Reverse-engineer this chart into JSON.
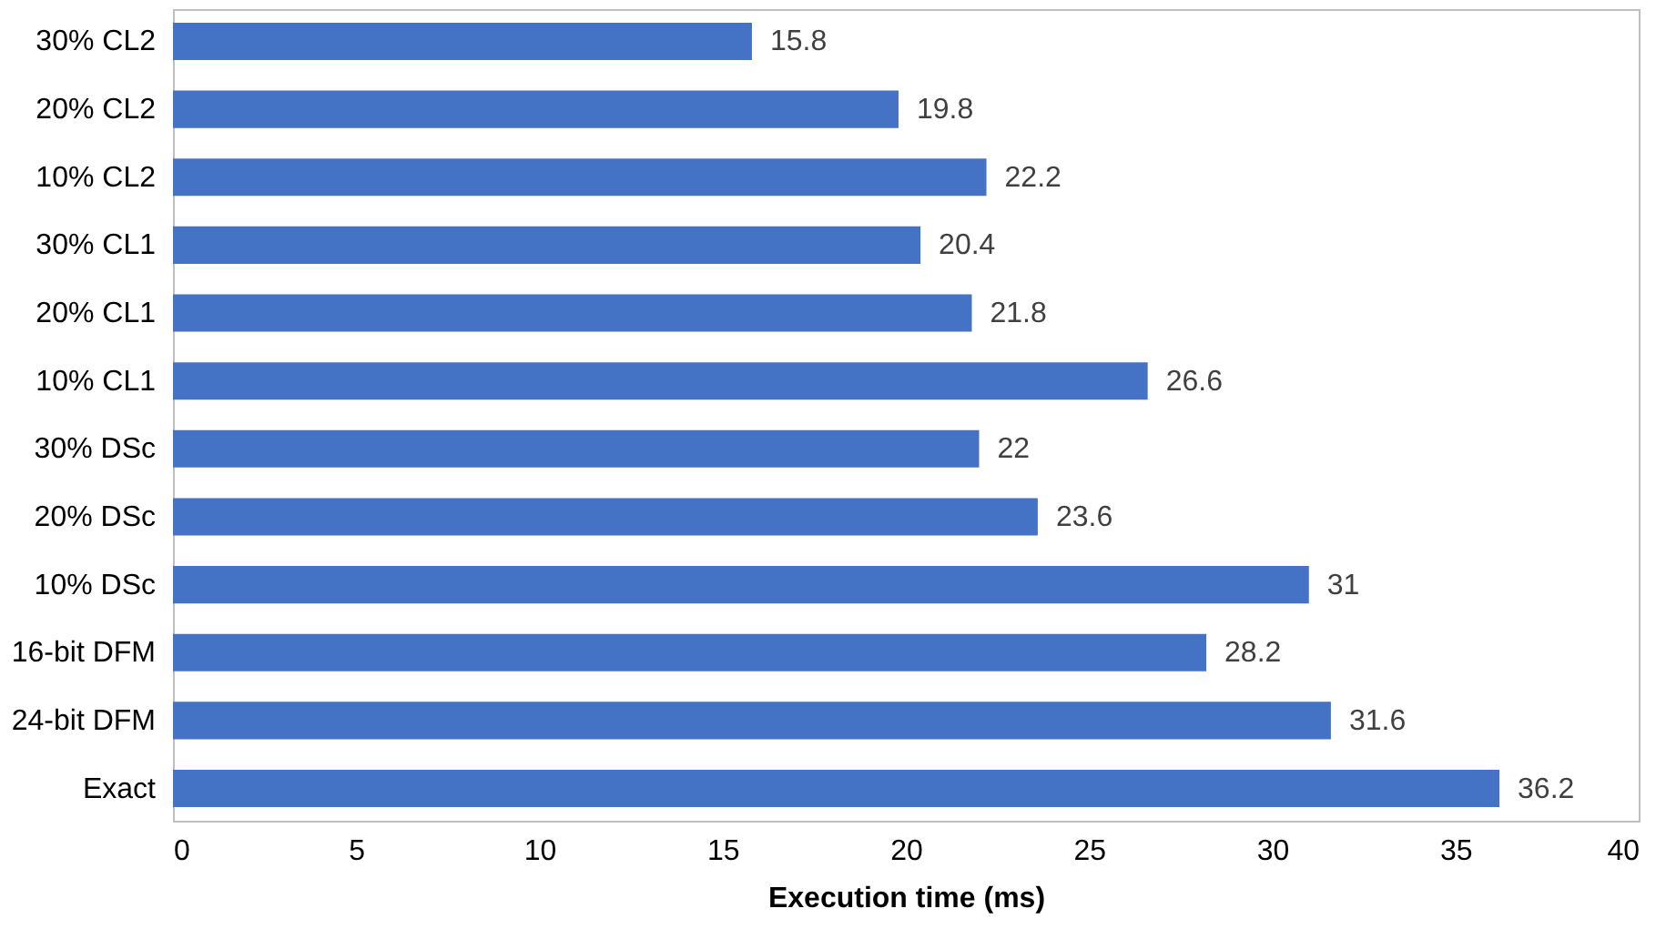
{
  "chart_data": {
    "type": "bar",
    "orientation": "horizontal",
    "xlabel": "Execution time (ms)",
    "categories": [
      "30% CL2",
      "20% CL2",
      "10% CL2",
      "30% CL1",
      "20% CL1",
      "10% CL1",
      "30% DSc",
      "20% DSc",
      "10% DSc",
      "16-bit DFM",
      "24-bit DFM",
      "Exact"
    ],
    "values": [
      15.8,
      19.8,
      22.2,
      20.4,
      21.8,
      26.6,
      22,
      23.6,
      31,
      28.2,
      31.6,
      36.2
    ],
    "color": "#4472c4",
    "xlim": [
      0,
      40
    ],
    "xticks": [
      0,
      5,
      10,
      15,
      20,
      25,
      30,
      35,
      40
    ],
    "data_labels": true,
    "grid": false
  }
}
